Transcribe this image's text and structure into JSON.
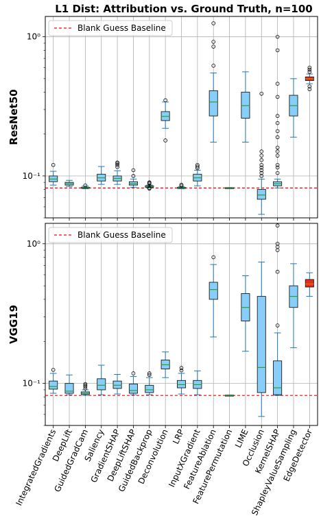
{
  "chart_data": {
    "type": "boxplot",
    "title": "L1 Dist: Attribution vs. Ground Truth, n=100",
    "yscale": "log",
    "grid": true,
    "legend_placement": "upper-left",
    "baseline_label": "Blank Guess Baseline",
    "colors": {
      "box_fill": "#87cefa",
      "highlight_fill": "#e8291c",
      "median": "#2ca02c",
      "whisker": "#1f77b4",
      "baseline": "#ff0000",
      "grid": "#b0b0b0"
    },
    "categories": [
      "IntegratedGradients",
      "DeepLift",
      "GuidedGradCam",
      "Saliency",
      "GradientSHAP",
      "DeepLiftSHAP",
      "GuidedBackprop",
      "Deconvolution",
      "LRP",
      "InputXGradient",
      "FeatureAblation",
      "FeaturePermutation",
      "LIME",
      "Occlusion",
      "KernelSHAP",
      "ShapleyValueSampling",
      "EdgeDetector"
    ],
    "highlight_category": "EdgeDetector",
    "panels": [
      {
        "ylabel": "ResNet50",
        "ylim": [
          0.05,
          1.4
        ],
        "yticks": [
          {
            "value": 0.1,
            "label": "10⁻¹"
          },
          {
            "value": 1,
            "label": "10⁰"
          }
        ],
        "baseline": 0.082,
        "boxes": [
          {
            "q1": 0.091,
            "med": 0.095,
            "q3": 0.1,
            "wlo": 0.086,
            "whi": 0.108,
            "fliers": [
              0.12
            ]
          },
          {
            "q1": 0.086,
            "med": 0.088,
            "q3": 0.09,
            "wlo": 0.084,
            "whi": 0.093,
            "fliers": []
          },
          {
            "q1": 0.0815,
            "med": 0.0822,
            "q3": 0.083,
            "wlo": 0.081,
            "whi": 0.0845,
            "fliers": [
              0.0855
            ]
          },
          {
            "q1": 0.092,
            "med": 0.097,
            "q3": 0.103,
            "wlo": 0.087,
            "whi": 0.117,
            "fliers": []
          },
          {
            "q1": 0.092,
            "med": 0.096,
            "q3": 0.1,
            "wlo": 0.087,
            "whi": 0.109,
            "fliers": [
              0.116,
              0.12,
              0.123,
              0.125
            ]
          },
          {
            "q1": 0.086,
            "med": 0.088,
            "q3": 0.091,
            "wlo": 0.083,
            "whi": 0.095,
            "fliers": [
              0.1,
              0.11
            ]
          },
          {
            "q1": 0.083,
            "med": 0.084,
            "q3": 0.085,
            "wlo": 0.082,
            "whi": 0.086,
            "fliers": [
              0.081,
              0.082,
              0.088,
              0.089,
              0.09
            ]
          },
          {
            "q1": 0.25,
            "med": 0.268,
            "q3": 0.29,
            "wlo": 0.22,
            "whi": 0.34,
            "fliers": [
              0.18,
              0.35
            ]
          },
          {
            "q1": 0.0815,
            "med": 0.082,
            "q3": 0.0828,
            "wlo": 0.081,
            "whi": 0.084,
            "fliers": [
              0.085,
              0.0865
            ]
          },
          {
            "q1": 0.092,
            "med": 0.097,
            "q3": 0.103,
            "wlo": 0.085,
            "whi": 0.11,
            "fliers": [
              0.114,
              0.117,
              0.12
            ]
          },
          {
            "q1": 0.27,
            "med": 0.34,
            "q3": 0.41,
            "wlo": 0.175,
            "whi": 0.55,
            "fliers": [
              0.62,
              0.85,
              0.92,
              1.25
            ]
          },
          {
            "q1": 0.0815,
            "med": 0.082,
            "q3": 0.0825,
            "wlo": 0.0815,
            "whi": 0.0825,
            "fliers": []
          },
          {
            "q1": 0.26,
            "med": 0.32,
            "q3": 0.4,
            "wlo": 0.175,
            "whi": 0.56,
            "fliers": []
          },
          {
            "q1": 0.068,
            "med": 0.073,
            "q3": 0.08,
            "wlo": 0.053,
            "whi": 0.095,
            "fliers": [
              0.1,
              0.105,
              0.11,
              0.115,
              0.12,
              0.13,
              0.14,
              0.15,
              0.39
            ]
          },
          {
            "q1": 0.085,
            "med": 0.088,
            "q3": 0.091,
            "wlo": 0.082,
            "whi": 0.095,
            "fliers": [
              0.105,
              0.115,
              0.12,
              0.14,
              0.15,
              0.16,
              0.19,
              0.21,
              0.24,
              0.27,
              0.37,
              0.46,
              0.8,
              1.0
            ]
          },
          {
            "q1": 0.27,
            "med": 0.32,
            "q3": 0.38,
            "wlo": 0.19,
            "whi": 0.5,
            "fliers": []
          },
          {
            "q1": 0.485,
            "med": 0.5,
            "q3": 0.515,
            "wlo": 0.46,
            "whi": 0.54,
            "fliers": [
              0.42,
              0.44,
              0.56,
              0.58,
              0.6
            ]
          }
        ]
      },
      {
        "ylabel": "VGG19",
        "ylim": [
          0.05,
          1.4
        ],
        "yticks": [
          {
            "value": 0.1,
            "label": "10⁻¹"
          },
          {
            "value": 1,
            "label": "10⁰"
          }
        ],
        "baseline": 0.082,
        "boxes": [
          {
            "q1": 0.091,
            "med": 0.095,
            "q3": 0.104,
            "wlo": 0.085,
            "whi": 0.118,
            "fliers": [
              0.125
            ]
          },
          {
            "q1": 0.085,
            "med": 0.088,
            "q3": 0.1,
            "wlo": 0.083,
            "whi": 0.115,
            "fliers": []
          },
          {
            "q1": 0.0835,
            "med": 0.085,
            "q3": 0.087,
            "wlo": 0.082,
            "whi": 0.09,
            "fliers": [
              0.092,
              0.095,
              0.097,
              0.099
            ]
          },
          {
            "q1": 0.09,
            "med": 0.097,
            "q3": 0.108,
            "wlo": 0.083,
            "whi": 0.135,
            "fliers": []
          },
          {
            "q1": 0.092,
            "med": 0.097,
            "q3": 0.104,
            "wlo": 0.084,
            "whi": 0.116,
            "fliers": []
          },
          {
            "q1": 0.085,
            "med": 0.089,
            "q3": 0.099,
            "wlo": 0.083,
            "whi": 0.112,
            "fliers": [
              0.118
            ]
          },
          {
            "q1": 0.086,
            "med": 0.09,
            "q3": 0.097,
            "wlo": 0.083,
            "whi": 0.11,
            "fliers": [
              0.115,
              0.118
            ]
          },
          {
            "q1": 0.127,
            "med": 0.136,
            "q3": 0.147,
            "wlo": 0.11,
            "whi": 0.168,
            "fliers": []
          },
          {
            "q1": 0.093,
            "med": 0.098,
            "q3": 0.105,
            "wlo": 0.084,
            "whi": 0.118,
            "fliers": [
              0.124,
              0.129
            ]
          },
          {
            "q1": 0.092,
            "med": 0.098,
            "q3": 0.105,
            "wlo": 0.083,
            "whi": 0.123,
            "fliers": []
          },
          {
            "q1": 0.4,
            "med": 0.47,
            "q3": 0.53,
            "wlo": 0.215,
            "whi": 0.71,
            "fliers": [
              0.8
            ]
          },
          {
            "q1": 0.0815,
            "med": 0.082,
            "q3": 0.0825,
            "wlo": 0.0815,
            "whi": 0.0825,
            "fliers": []
          },
          {
            "q1": 0.28,
            "med": 0.35,
            "q3": 0.44,
            "wlo": 0.17,
            "whi": 0.59,
            "fliers": []
          },
          {
            "q1": 0.086,
            "med": 0.13,
            "q3": 0.42,
            "wlo": 0.058,
            "whi": 0.74,
            "fliers": []
          },
          {
            "q1": 0.083,
            "med": 0.093,
            "q3": 0.145,
            "wlo": 0.082,
            "whi": 0.23,
            "fliers": [
              0.26,
              0.63,
              0.9,
              0.95,
              1.0,
              1.35
            ]
          },
          {
            "q1": 0.35,
            "med": 0.42,
            "q3": 0.5,
            "wlo": 0.18,
            "whi": 0.72,
            "fliers": []
          },
          {
            "q1": 0.49,
            "med": 0.515,
            "q3": 0.555,
            "wlo": 0.42,
            "whi": 0.62,
            "fliers": []
          }
        ]
      }
    ]
  }
}
